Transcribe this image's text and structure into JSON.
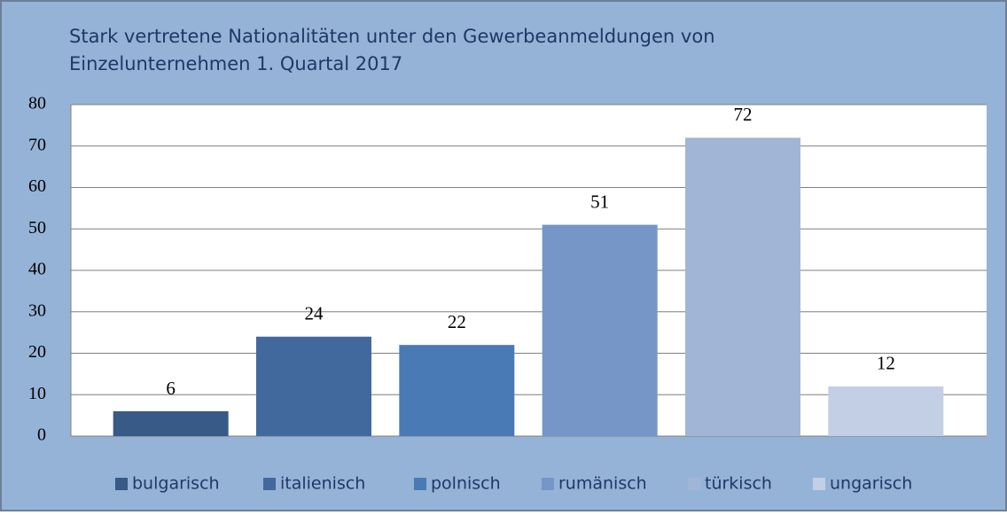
{
  "chart_data": {
    "type": "bar",
    "title": [
      "Stark vertretene Nationalitäten unter den Gewerbeanmeldungen von",
      "Einzelunternehmen 1. Quartal 2017"
    ],
    "series": [
      {
        "name": "bulgarisch",
        "color": "#375a87",
        "values": [
          6
        ]
      },
      {
        "name": "italienisch",
        "color": "#41699e",
        "values": [
          24
        ]
      },
      {
        "name": "polnisch",
        "color": "#4a7ab5",
        "values": [
          22
        ]
      },
      {
        "name": "rumänisch",
        "color": "#7596c6",
        "values": [
          51
        ]
      },
      {
        "name": "türkisch",
        "color": "#a1b5d6",
        "values": [
          72
        ]
      },
      {
        "name": "ungarisch",
        "color": "#c3cfe4",
        "values": [
          12
        ]
      }
    ],
    "ylim": [
      0,
      80
    ],
    "yticks": [
      0,
      10,
      20,
      30,
      40,
      50,
      60,
      70,
      80
    ],
    "grid": true,
    "legend": "bottom"
  }
}
